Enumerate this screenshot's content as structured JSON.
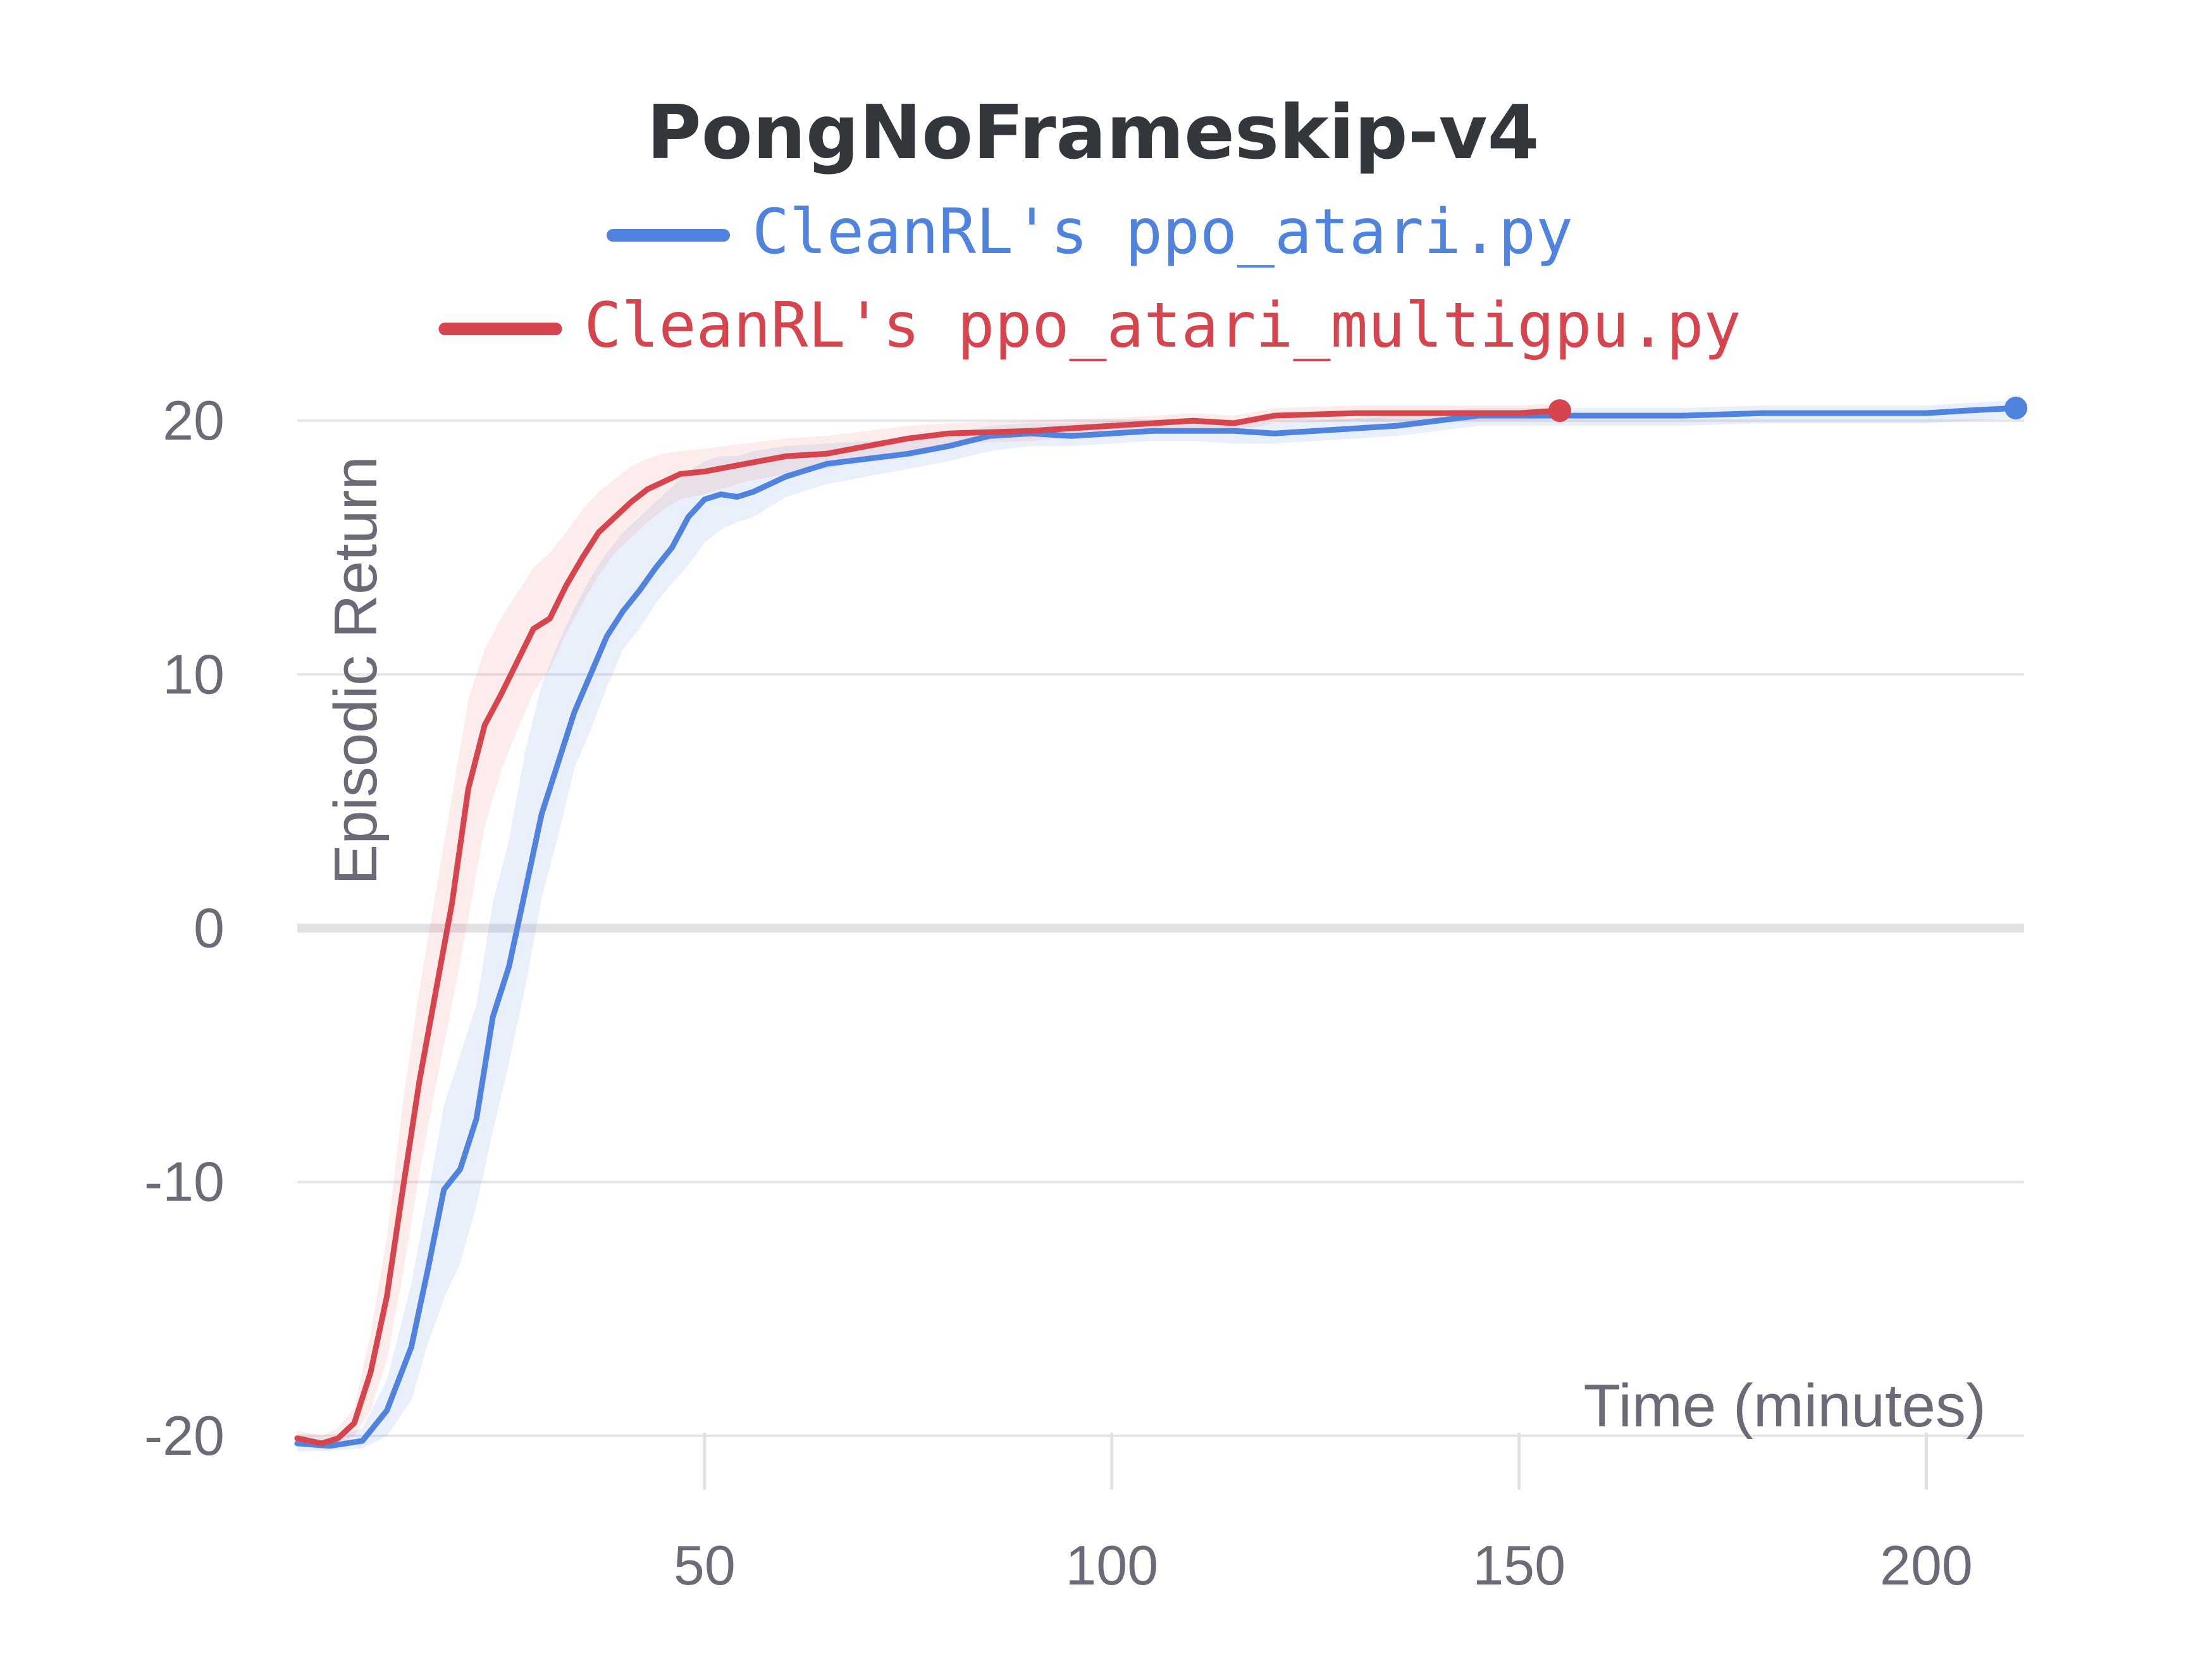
{
  "chart_data": {
    "type": "line",
    "title": "PongNoFrameskip-v4",
    "xlabel": "Time (minutes)",
    "ylabel": "Episodic Return",
    "xlim": [
      0,
      212
    ],
    "ylim": [
      -21,
      21
    ],
    "x_ticks": [
      50,
      100,
      150,
      200
    ],
    "y_ticks": [
      -20,
      -10,
      0,
      10,
      20
    ],
    "grid": true,
    "legend_position": "top-center",
    "series": [
      {
        "name": "CleanRL's ppo_atari.py",
        "color": "#4f83de",
        "band_color": "#4f83de",
        "x": [
          0,
          4,
          8,
          11,
          14,
          16,
          18,
          20,
          22,
          24,
          26,
          28,
          30,
          32,
          34,
          36,
          38,
          40,
          42,
          44,
          46,
          48,
          50,
          52,
          54,
          56,
          58,
          60,
          65,
          70,
          75,
          80,
          85,
          90,
          95,
          100,
          105,
          110,
          115,
          120,
          125,
          130,
          135,
          140,
          145,
          150,
          155,
          160,
          170,
          180,
          190,
          200,
          205,
          211
        ],
        "y": [
          -20.3,
          -20.4,
          -20.2,
          -19,
          -16.5,
          -13.5,
          -10.3,
          -9.5,
          -7.5,
          -3.5,
          -1.5,
          1.5,
          4.5,
          6.5,
          8.5,
          10.0,
          11.5,
          12.5,
          13.3,
          14.2,
          15.0,
          16.2,
          16.9,
          17.1,
          17.0,
          17.2,
          17.5,
          17.8,
          18.3,
          18.5,
          18.7,
          19.0,
          19.4,
          19.5,
          19.4,
          19.5,
          19.6,
          19.6,
          19.6,
          19.5,
          19.6,
          19.7,
          19.8,
          20.0,
          20.2,
          20.2,
          20.2,
          20.2,
          20.2,
          20.3,
          20.3,
          20.3,
          20.4,
          20.5
        ],
        "lower": [
          -20.6,
          -20.6,
          -20.5,
          -20.0,
          -18.6,
          -16.4,
          -14.6,
          -13.2,
          -10.9,
          -8.0,
          -5.3,
          -2.3,
          1.2,
          3.6,
          6.3,
          7.8,
          9.5,
          11.0,
          11.8,
          12.8,
          13.6,
          14.3,
          15.2,
          15.7,
          16.0,
          16.2,
          16.6,
          17.0,
          17.5,
          17.8,
          18.1,
          18.4,
          18.8,
          19.0,
          19.0,
          19.1,
          19.2,
          19.2,
          19.1,
          19.1,
          19.2,
          19.3,
          19.4,
          19.6,
          19.8,
          19.8,
          19.8,
          19.8,
          19.8,
          19.9,
          19.9,
          19.9,
          20.0,
          20.1
        ],
        "upper": [
          -20.0,
          -20.1,
          -19.7,
          -17.8,
          -14.0,
          -10.6,
          -7.0,
          -5.0,
          -3.0,
          1.0,
          3.5,
          7.0,
          9.6,
          11.2,
          12.6,
          13.8,
          14.8,
          15.6,
          16.2,
          16.8,
          17.4,
          18.0,
          18.4,
          18.6,
          18.6,
          18.8,
          18.9,
          19.0,
          19.1,
          19.2,
          19.3,
          19.5,
          19.8,
          19.9,
          19.9,
          20.0,
          20.0,
          20.0,
          20.0,
          19.9,
          20.0,
          20.1,
          20.2,
          20.4,
          20.5,
          20.5,
          20.5,
          20.5,
          20.5,
          20.6,
          20.6,
          20.6,
          20.7,
          20.8
        ]
      },
      {
        "name": "CleanRL's ppo_atari_multigpu.py",
        "color": "#d6454d",
        "band_color": "#e86a6f",
        "x": [
          0,
          3,
          5,
          7,
          9,
          11,
          13,
          15,
          17,
          19,
          21,
          23,
          25,
          27,
          29,
          31,
          33,
          35,
          37,
          39,
          41,
          43,
          45,
          47,
          50,
          55,
          60,
          65,
          70,
          75,
          80,
          90,
          100,
          110,
          115,
          120,
          130,
          140,
          150,
          155
        ],
        "y": [
          -20.1,
          -20.3,
          -20.1,
          -19.5,
          -17.5,
          -14.5,
          -10.2,
          -6.0,
          -2.5,
          1.0,
          5.5,
          8.0,
          9.2,
          10.5,
          11.8,
          12.2,
          13.5,
          14.6,
          15.6,
          16.2,
          16.8,
          17.3,
          17.6,
          17.9,
          18.0,
          18.3,
          18.6,
          18.7,
          19.0,
          19.3,
          19.5,
          19.6,
          19.8,
          20.0,
          19.9,
          20.2,
          20.3,
          20.3,
          20.3,
          20.4
        ],
        "lower": [
          -20.4,
          -20.5,
          -20.4,
          -20.0,
          -19.0,
          -17.0,
          -13.6,
          -9.6,
          -6.2,
          -3.0,
          0.4,
          4.0,
          6.2,
          7.8,
          9.3,
          10.2,
          11.6,
          12.8,
          13.9,
          14.8,
          15.4,
          16.0,
          16.5,
          16.9,
          17.1,
          17.6,
          17.9,
          18.1,
          18.5,
          18.8,
          19.1,
          19.2,
          19.5,
          19.7,
          19.6,
          19.9,
          20.0,
          20.0,
          20.0,
          20.1
        ],
        "upper": [
          -19.8,
          -20.0,
          -19.7,
          -18.9,
          -16.0,
          -12.2,
          -6.8,
          -2.4,
          1.4,
          5.2,
          9.0,
          11.0,
          12.2,
          13.2,
          14.2,
          14.8,
          15.6,
          16.5,
          17.2,
          17.7,
          18.2,
          18.5,
          18.7,
          18.8,
          18.9,
          19.1,
          19.3,
          19.4,
          19.6,
          19.8,
          19.9,
          20.0,
          20.1,
          20.3,
          20.2,
          20.5,
          20.6,
          20.6,
          20.6,
          20.7
        ]
      }
    ]
  }
}
